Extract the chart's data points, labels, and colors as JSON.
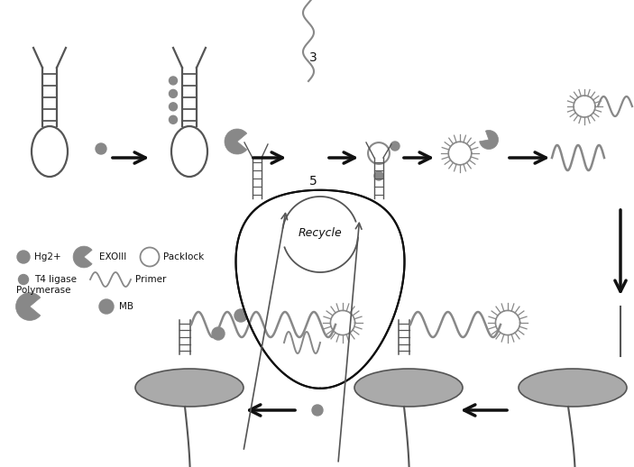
{
  "bg_color": "#ffffff",
  "gray_dark": "#555555",
  "gray_med": "#888888",
  "gray_light": "#aaaaaa",
  "gray_electrode": "#aaaaaa",
  "black": "#111111",
  "recycle_text": "Recycle",
  "label_3": "3",
  "label_5": "5"
}
